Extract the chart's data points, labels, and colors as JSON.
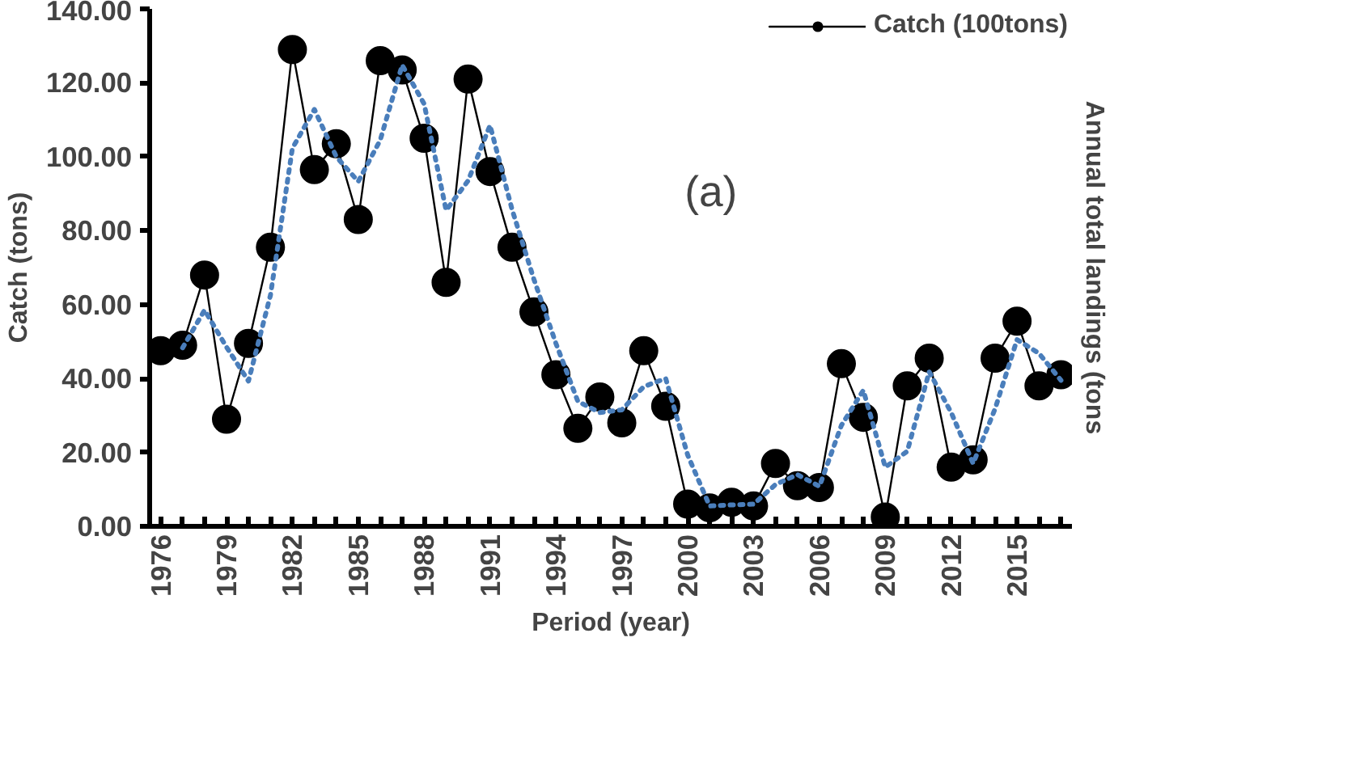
{
  "chart_data": {
    "type": "line",
    "xlabel": "Period (year)",
    "ylabel": "Catch (tons)",
    "y2label": "Annual total landings (tons",
    "annotations": [
      "(a)"
    ],
    "xlim": [
      1975.5,
      2017.5
    ],
    "xticks": [
      {
        "value": 1976,
        "label": "1976"
      },
      {
        "value": 1977,
        "label": null
      },
      {
        "value": 1978,
        "label": null
      },
      {
        "value": 1979,
        "label": "1979"
      },
      {
        "value": 1980,
        "label": null
      },
      {
        "value": 1981,
        "label": null
      },
      {
        "value": 1982,
        "label": "1982"
      },
      {
        "value": 1983,
        "label": null
      },
      {
        "value": 1984,
        "label": null
      },
      {
        "value": 1985,
        "label": "1985"
      },
      {
        "value": 1986,
        "label": null
      },
      {
        "value": 1987,
        "label": null
      },
      {
        "value": 1988,
        "label": "1988"
      },
      {
        "value": 1989,
        "label": null
      },
      {
        "value": 1990,
        "label": null
      },
      {
        "value": 1991,
        "label": "1991"
      },
      {
        "value": 1992,
        "label": null
      },
      {
        "value": 1993,
        "label": null
      },
      {
        "value": 1994,
        "label": "1994"
      },
      {
        "value": 1995,
        "label": null
      },
      {
        "value": 1996,
        "label": null
      },
      {
        "value": 1997,
        "label": "1997"
      },
      {
        "value": 1998,
        "label": null
      },
      {
        "value": 1999,
        "label": null
      },
      {
        "value": 2000,
        "label": "2000"
      },
      {
        "value": 2001,
        "label": null
      },
      {
        "value": 2002,
        "label": null
      },
      {
        "value": 2003,
        "label": "2003"
      },
      {
        "value": 2004,
        "label": null
      },
      {
        "value": 2005,
        "label": null
      },
      {
        "value": 2006,
        "label": "2006"
      },
      {
        "value": 2007,
        "label": null
      },
      {
        "value": 2008,
        "label": null
      },
      {
        "value": 2009,
        "label": "2009"
      },
      {
        "value": 2010,
        "label": null
      },
      {
        "value": 2011,
        "label": null
      },
      {
        "value": 2012,
        "label": "2012"
      },
      {
        "value": 2013,
        "label": null
      },
      {
        "value": 2014,
        "label": null
      },
      {
        "value": 2015,
        "label": "2015"
      },
      {
        "value": 2016,
        "label": null
      },
      {
        "value": 2017,
        "label": null
      }
    ],
    "ylim": [
      0,
      140
    ],
    "yticks": [
      {
        "value": 0,
        "label": "0.00"
      },
      {
        "value": 20,
        "label": "20.00"
      },
      {
        "value": 40,
        "label": "40.00"
      },
      {
        "value": 60,
        "label": "60.00"
      },
      {
        "value": 80,
        "label": "80.00"
      },
      {
        "value": 100,
        "label": "100.00"
      },
      {
        "value": 120,
        "label": "120.00"
      },
      {
        "value": 140,
        "label": "140.00"
      }
    ],
    "grid": false,
    "legend": "top right",
    "series": [
      {
        "name": "Catch (100tons)",
        "color": "#000000",
        "marker": "circle",
        "line_style": "solid",
        "x": [
          1976,
          1977,
          1978,
          1979,
          1980,
          1981,
          1982,
          1983,
          1984,
          1985,
          1986,
          1987,
          1988,
          1989,
          1990,
          1991,
          1992,
          1993,
          1994,
          1995,
          1996,
          1997,
          1998,
          1999,
          2000,
          2001,
          2002,
          2003,
          2004,
          2005,
          2006,
          2007,
          2008,
          2009,
          2010,
          2011,
          2012,
          2013,
          2014,
          2015,
          2016,
          2017
        ],
        "values": [
          47.5,
          49,
          68,
          29,
          49.5,
          75.5,
          129,
          96.5,
          103.5,
          83,
          126,
          123.5,
          105,
          66,
          121,
          96,
          75.5,
          58,
          41,
          26.5,
          35,
          28,
          47.5,
          32.5,
          6,
          5,
          6.5,
          5.5,
          17,
          11,
          10.5,
          44,
          29.5,
          2.5,
          38,
          45.5,
          16,
          18,
          45.5,
          55.5,
          38,
          41
        ]
      },
      {
        "color": "#4a7ebb",
        "marker": "none",
        "line_style": "dotted",
        "x": [
          1977,
          1978,
          1979,
          1980,
          1981,
          1982,
          1983,
          1984,
          1985,
          1986,
          1987,
          1988,
          1989,
          1990,
          1991,
          1992,
          1993,
          1994,
          1995,
          1996,
          1997,
          1998,
          1999,
          2000,
          2001,
          2002,
          2003,
          2004,
          2005,
          2006,
          2007,
          2008,
          2009,
          2010,
          2011,
          2012,
          2013,
          2014,
          2015,
          2016,
          2017
        ],
        "values": [
          48.3,
          58.5,
          48.5,
          39.3,
          62.5,
          102.3,
          112.8,
          100,
          93.3,
          104.5,
          124.8,
          114.3,
          85.5,
          93.5,
          108.5,
          85.8,
          66.8,
          49.5,
          33.8,
          30.8,
          31.5,
          37.8,
          40,
          19.3,
          5.5,
          5.8,
          6,
          11.3,
          14,
          10.8,
          27.3,
          36.8,
          16,
          20.3,
          41.8,
          30.8,
          17,
          31.8,
          50.5,
          46.8,
          39.5
        ]
      }
    ]
  }
}
